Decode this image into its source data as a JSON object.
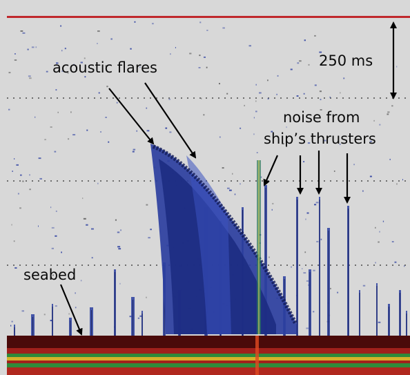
{
  "labels": {
    "acoustic_flares": "acoustic flares",
    "scale_bar": "250 ms",
    "noise_line1": "noise from",
    "noise_line2": "ship’s thrusters",
    "seabed": "seabed"
  },
  "colors": {
    "background": "#d8d8d8",
    "echo_blue": "#2c3fa0",
    "echo_dark": "#121a55",
    "surface_line": "#c0282c",
    "seabed_dark": "#4a0a0a",
    "seabed_red": "#a0201c",
    "seabed_green": "#2f8a3a",
    "seabed_yellow": "#d6b12a",
    "arrow": "#000000"
  }
}
